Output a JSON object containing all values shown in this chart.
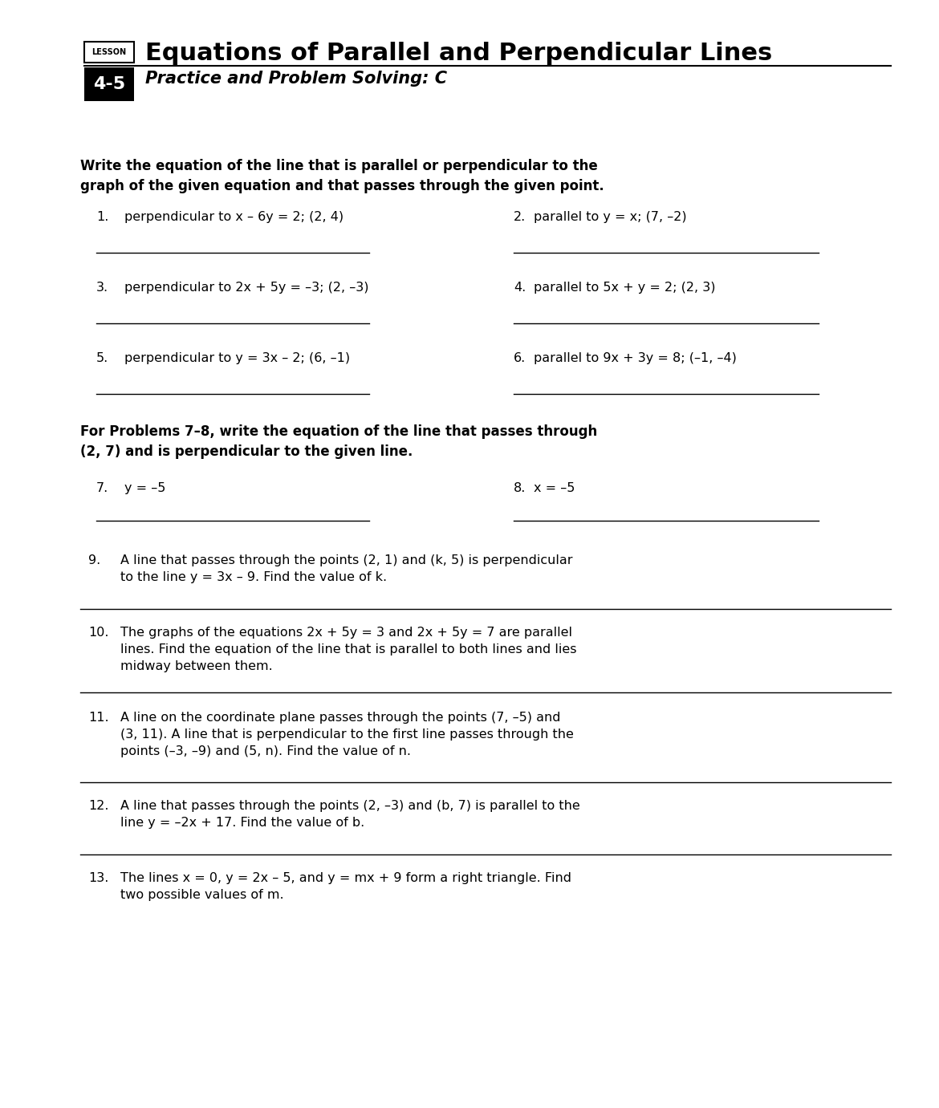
{
  "bg_color": "#ffffff",
  "title": "Equations of Parallel and Perpendicular Lines",
  "lesson_label": "LESSON",
  "lesson_number": "4-5",
  "subtitle": "Practice and Problem Solving: C",
  "section1_instructions": "Write the equation of the line that is parallel or perpendicular to the\ngraph of the given equation and that passes through the given point.",
  "problems_1_6": [
    {
      "num": "1.",
      "text": "perpendicular to x – 6y = 2; (2, 4)"
    },
    {
      "num": "2.",
      "text": "parallel to y = x; (7, –2)"
    },
    {
      "num": "3.",
      "text": "perpendicular to 2x + 5y = –3; (2, –3)"
    },
    {
      "num": "4.",
      "text": "parallel to 5x + y = 2; (2, 3)"
    },
    {
      "num": "5.",
      "text": "perpendicular to y = 3x – 2; (6, –1)"
    },
    {
      "num": "6.",
      "text": "parallel to 9x + 3y = 8; (–1, –4)"
    }
  ],
  "section2_instructions": "For Problems 7–8, write the equation of the line that passes through\n(2, 7) and is perpendicular to the given line.",
  "problems_7_8": [
    {
      "num": "7.",
      "text": "y = –5"
    },
    {
      "num": "8.",
      "text": "x = –5"
    }
  ],
  "problems_9_13": [
    {
      "num": "9.",
      "text": "A line that passes through the points (2, 1) and (k, 5) is perpendicular\nto the line y = 3x – 9. Find the value of k."
    },
    {
      "num": "10.",
      "text": "The graphs of the equations 2x + 5y = 3 and 2x + 5y = 7 are parallel\nlines. Find the equation of the line that is parallel to both lines and lies\nmidway between them."
    },
    {
      "num": "11.",
      "text": "A line on the coordinate plane passes through the points (7, –5) and\n(3, 11). A line that is perpendicular to the first line passes through the\npoints (–3, –9) and (5, n). Find the value of n."
    },
    {
      "num": "12.",
      "text": "A line that passes through the points (2, –3) and (b, 7) is parallel to the\nline y = –2x + 17. Find the value of b."
    },
    {
      "num": "13.",
      "text": "The lines x = 0, y = 2x – 5, and y = mx + 9 form a right triangle. Find\ntwo possible values of m."
    }
  ]
}
